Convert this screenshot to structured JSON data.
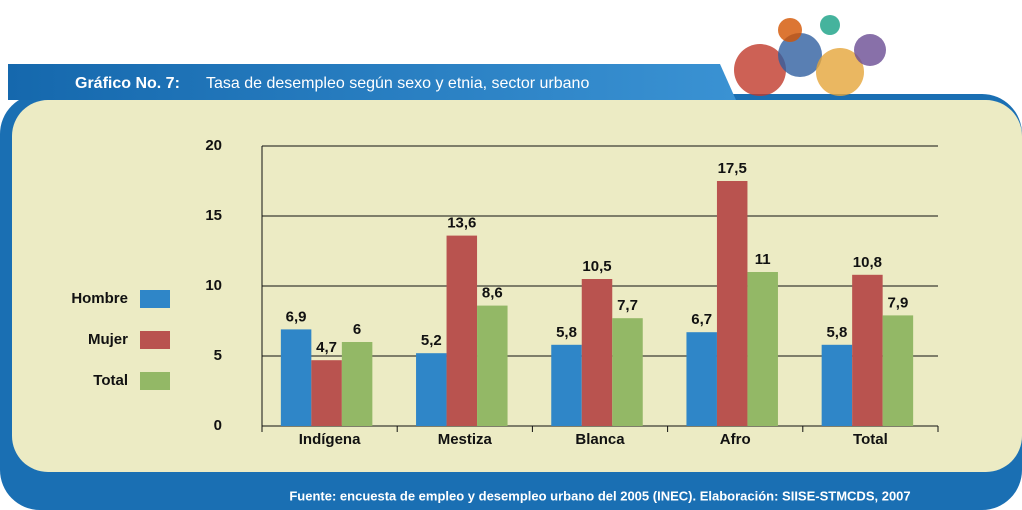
{
  "chart_data": {
    "type": "bar",
    "title_label": "Gráfico No. 7:",
    "title": "Tasa de desempleo según sexo y etnia, sector urbano",
    "source": "Fuente: encuesta de empleo y desempleo urbano del 2005 (INEC). Elaboración: SIISE-STMCDS, 2007",
    "categories": [
      "Indígena",
      "Mestiza",
      "Blanca",
      "Afro",
      "Total"
    ],
    "series": [
      {
        "name": "Hombre",
        "color": "#2f86c8",
        "values": [
          6.9,
          5.2,
          5.8,
          6.7,
          5.8
        ],
        "value_labels": [
          "6,9",
          "5,2",
          "5,8",
          "6,7",
          "5,8"
        ]
      },
      {
        "name": "Mujer",
        "color": "#b9534f",
        "values": [
          4.7,
          13.6,
          10.5,
          17.5,
          10.8
        ],
        "value_labels": [
          "4,7",
          "13,6",
          "10,5",
          "17,5",
          "10,8"
        ]
      },
      {
        "name": "Total",
        "color": "#93b866",
        "values": [
          6,
          8.6,
          7.7,
          11,
          7.9
        ],
        "value_labels": [
          "6",
          "8,6",
          "7,7",
          "11",
          "7,9"
        ]
      }
    ],
    "ylim": [
      0,
      20
    ],
    "yticks": [
      0,
      5,
      10,
      15,
      20
    ],
    "grid": true
  }
}
